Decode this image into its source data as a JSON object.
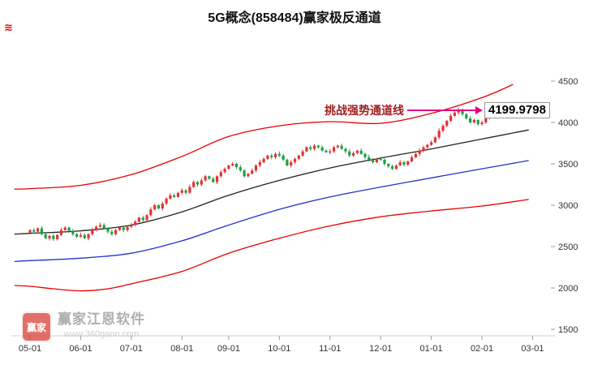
{
  "corner_mark": "≋",
  "watermark": {
    "logo_text": "赢家",
    "name": "赢家江恩软件",
    "url": "www.360gann.com"
  },
  "chart_data": {
    "type": "candlestick",
    "title": "5G概念(858484)赢家极反通道",
    "annotation": {
      "label": "挑战强势通道线",
      "value": "4199.9798"
    },
    "x_labels": [
      "05-01",
      "06-01",
      "07-01",
      "08-01",
      "09-01",
      "10-01",
      "11-01",
      "12-01",
      "01-01",
      "02-01",
      "03-01"
    ],
    "x_label_days": [
      0,
      13,
      26,
      39,
      51,
      64,
      77,
      90,
      103,
      116,
      129
    ],
    "y_ticks": [
      1500,
      2000,
      2500,
      3000,
      3500,
      4000,
      4500
    ],
    "ylim": [
      1500,
      4500
    ],
    "grid": false,
    "legend": "none",
    "colors": {
      "up": "#e23333",
      "down": "#1f9e44",
      "rail": "#e60000",
      "life": "#222222",
      "inner": "#2233cc"
    },
    "closes": [
      2700,
      2680,
      2720,
      2650,
      2600,
      2630,
      2590,
      2640,
      2700,
      2730,
      2690,
      2650,
      2620,
      2640,
      2600,
      2650,
      2700,
      2740,
      2760,
      2720,
      2680,
      2650,
      2700,
      2730,
      2700,
      2740,
      2760,
      2800,
      2850,
      2820,
      2880,
      2950,
      3000,
      2960,
      3020,
      3080,
      3120,
      3100,
      3150,
      3180,
      3150,
      3220,
      3280,
      3250,
      3300,
      3350,
      3320,
      3280,
      3350,
      3400,
      3440,
      3480,
      3500,
      3460,
      3420,
      3350,
      3380,
      3420,
      3480,
      3520,
      3560,
      3600,
      3580,
      3620,
      3600,
      3550,
      3480,
      3520,
      3560,
      3600,
      3650,
      3700,
      3680,
      3720,
      3700,
      3660,
      3640,
      3650,
      3700,
      3720,
      3680,
      3650,
      3600,
      3630,
      3660,
      3620,
      3580,
      3550,
      3520,
      3560,
      3550,
      3500,
      3470,
      3440,
      3480,
      3520,
      3490,
      3530,
      3580,
      3620,
      3660,
      3700,
      3730,
      3760,
      3820,
      3900,
      3960,
      4020,
      4080,
      4120,
      4150,
      4100,
      4050,
      4000,
      4030,
      3980,
      4000,
      4050,
      4100,
      4080,
      4120,
      4160,
      4190,
      4200
    ],
    "lines": [
      {
        "name": "upper-rail-red",
        "color": "#e60000",
        "points": [
          [
            -4,
            3195
          ],
          [
            0,
            3200
          ],
          [
            13,
            3240
          ],
          [
            26,
            3370
          ],
          [
            39,
            3590
          ],
          [
            51,
            3830
          ],
          [
            64,
            3960
          ],
          [
            77,
            4010
          ],
          [
            90,
            3990
          ],
          [
            103,
            4110
          ],
          [
            116,
            4300
          ],
          [
            124,
            4460
          ]
        ]
      },
      {
        "name": "life-line-black",
        "color": "#222222",
        "points": [
          [
            -4,
            2650
          ],
          [
            0,
            2660
          ],
          [
            13,
            2690
          ],
          [
            26,
            2760
          ],
          [
            39,
            2920
          ],
          [
            51,
            3120
          ],
          [
            64,
            3300
          ],
          [
            77,
            3450
          ],
          [
            90,
            3570
          ],
          [
            103,
            3680
          ],
          [
            116,
            3800
          ],
          [
            128,
            3910
          ]
        ]
      },
      {
        "name": "inner-rail-blue",
        "color": "#2233cc",
        "points": [
          [
            -4,
            2320
          ],
          [
            0,
            2330
          ],
          [
            13,
            2360
          ],
          [
            26,
            2420
          ],
          [
            39,
            2570
          ],
          [
            51,
            2760
          ],
          [
            64,
            2950
          ],
          [
            77,
            3100
          ],
          [
            90,
            3220
          ],
          [
            103,
            3330
          ],
          [
            116,
            3440
          ],
          [
            128,
            3540
          ]
        ]
      },
      {
        "name": "lower-rail-red",
        "color": "#e60000",
        "points": [
          [
            -4,
            2030
          ],
          [
            0,
            2020
          ],
          [
            6,
            1990
          ],
          [
            13,
            1965
          ],
          [
            20,
            1990
          ],
          [
            26,
            2050
          ],
          [
            39,
            2200
          ],
          [
            51,
            2420
          ],
          [
            64,
            2600
          ],
          [
            77,
            2750
          ],
          [
            90,
            2860
          ],
          [
            103,
            2930
          ],
          [
            116,
            2990
          ],
          [
            128,
            3070
          ]
        ]
      }
    ]
  }
}
